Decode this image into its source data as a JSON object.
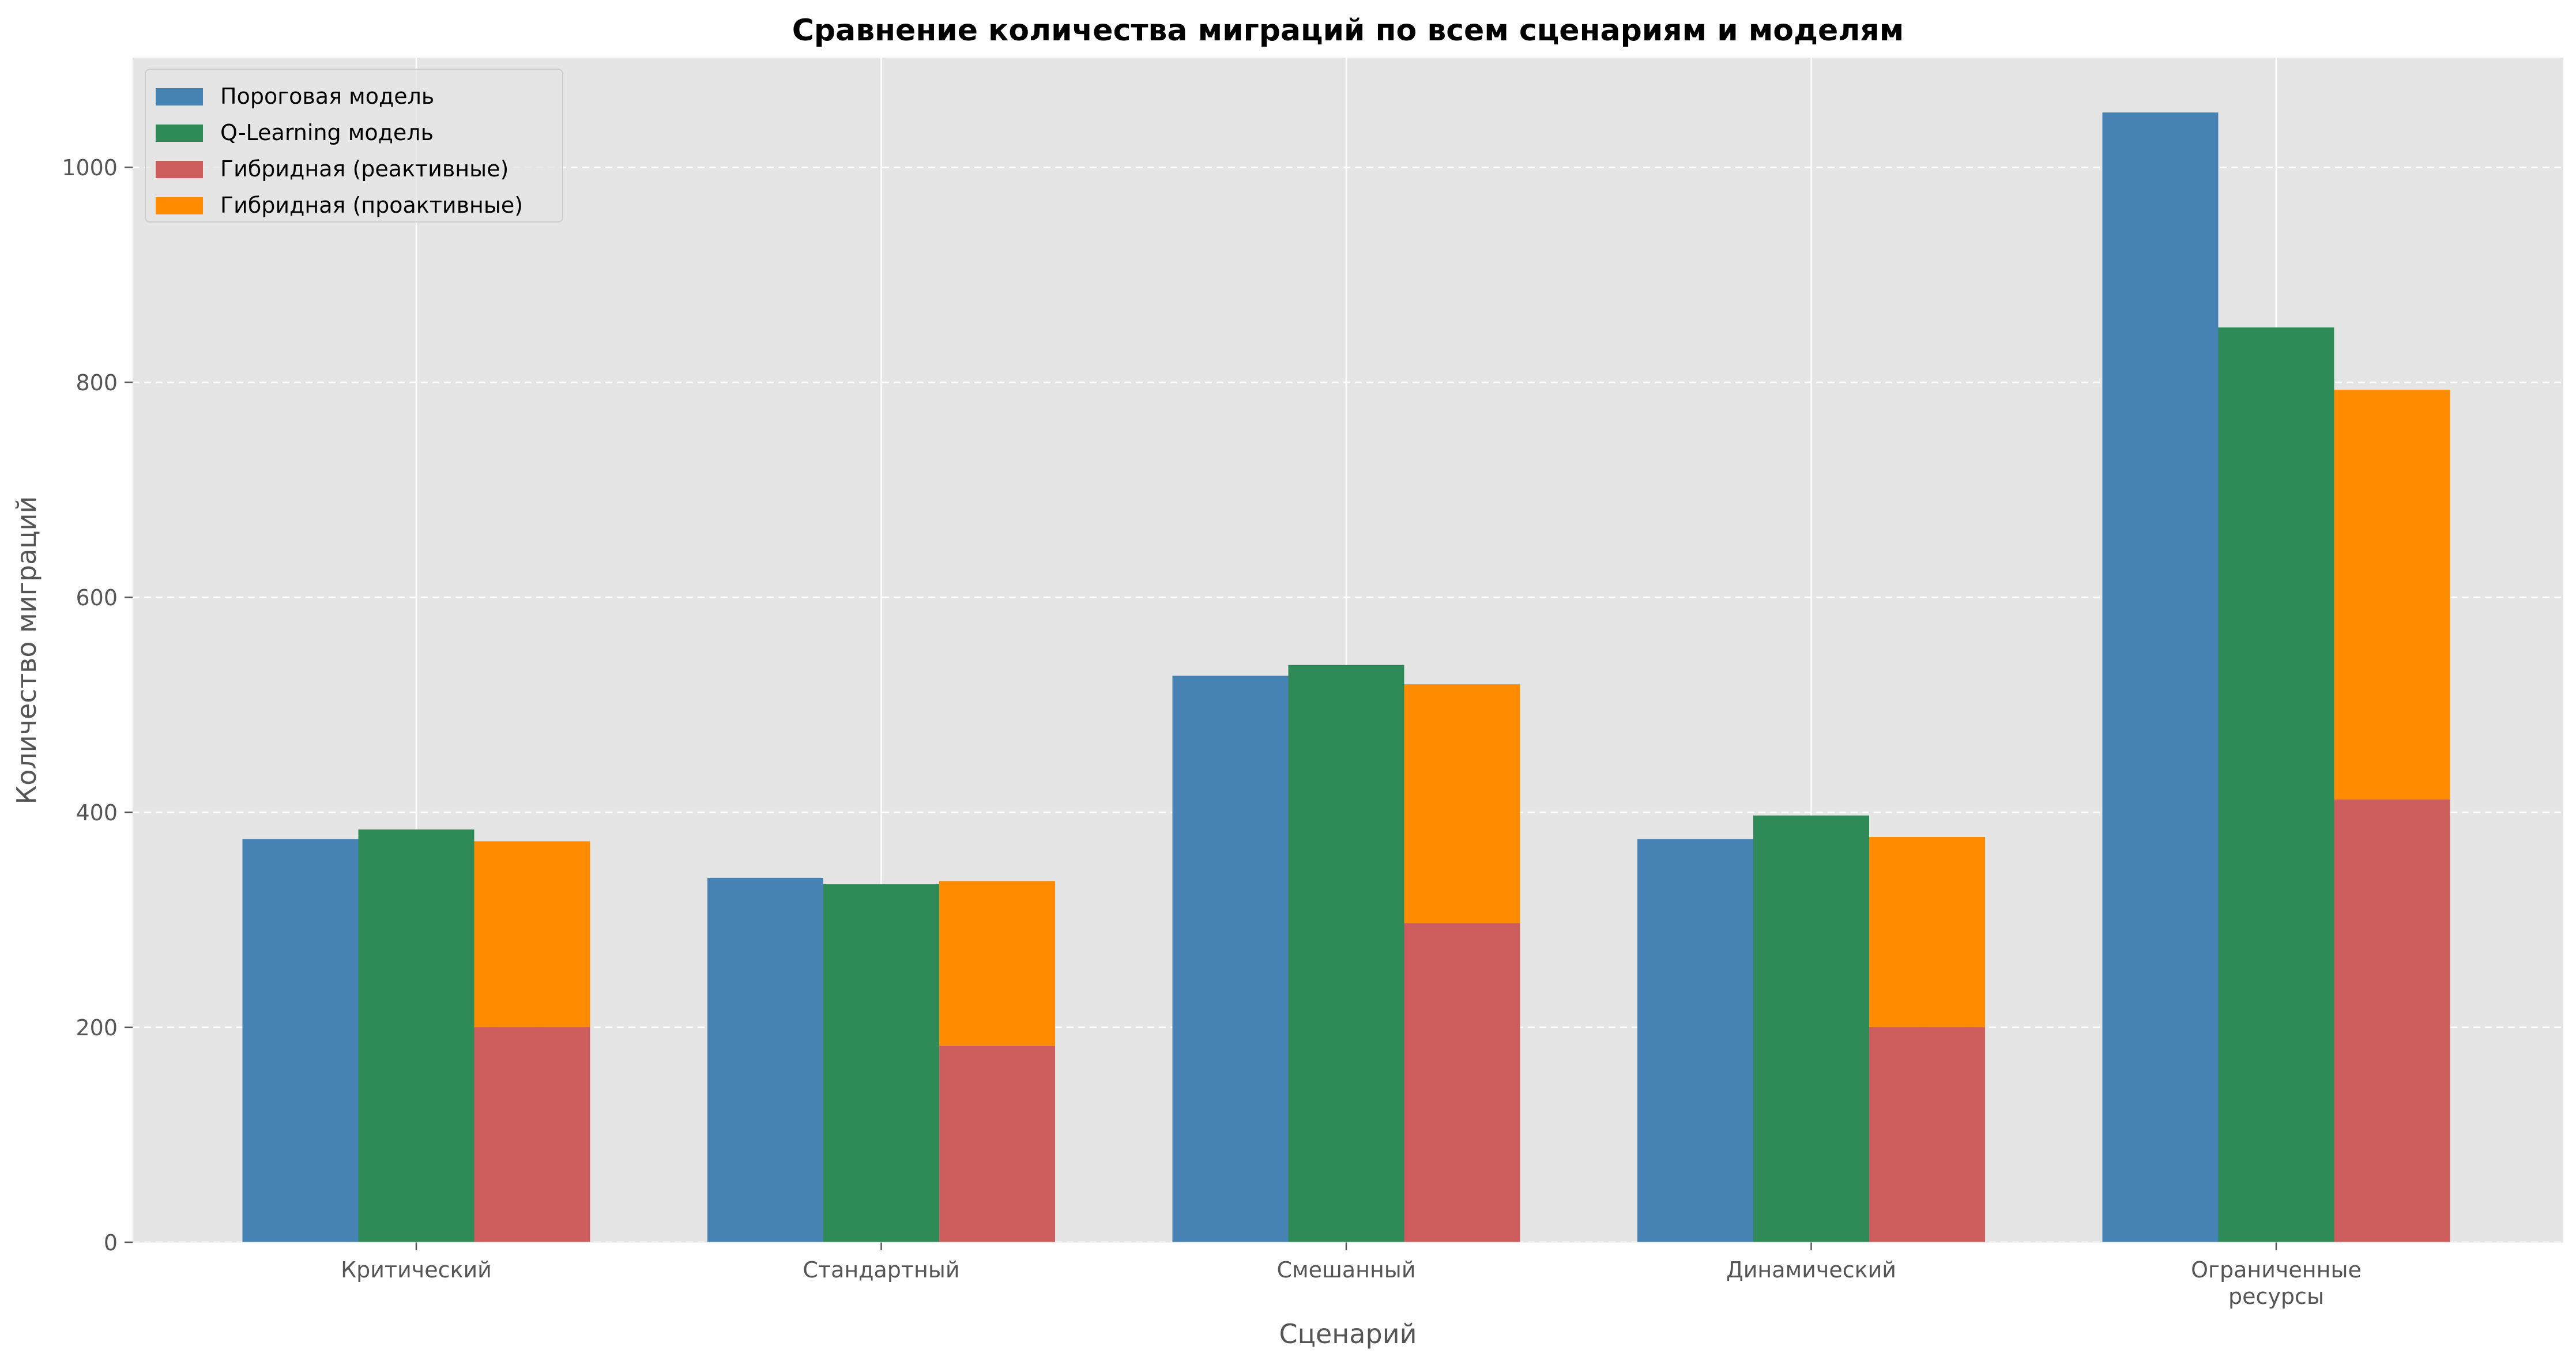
{
  "chart_data": {
    "type": "bar",
    "title": "Сравнение количества миграций по всем сценариям и моделям",
    "xlabel": "Сценарий",
    "ylabel": "Количество миграций",
    "ylim": [
      0,
      1102
    ],
    "yticks": [
      0,
      200,
      400,
      600,
      800,
      1000
    ],
    "grid": true,
    "legend_position": "top-left",
    "categories": [
      [
        "Критический"
      ],
      [
        "Стандартный"
      ],
      [
        "Смешанный"
      ],
      [
        "Динамический"
      ],
      [
        "Ограниченные",
        "ресурсы"
      ]
    ],
    "series": [
      {
        "name": "Пороговая модель",
        "color": "#4682b4",
        "values": [
          375,
          339,
          527,
          375,
          1051
        ]
      },
      {
        "name": "Q-Learning модель",
        "color": "#2e8b57",
        "values": [
          384,
          333,
          537,
          397,
          851
        ]
      },
      {
        "name": "Гибридная (реактивные)",
        "color": "#cd5c5c",
        "values": [
          200,
          183,
          297,
          200,
          412
        ],
        "stack_group": "hybrid"
      },
      {
        "name": "Гибридная (проактивные)",
        "color": "#ff8c00",
        "values": [
          173,
          153,
          222,
          177,
          381
        ],
        "stack_group": "hybrid"
      }
    ]
  }
}
